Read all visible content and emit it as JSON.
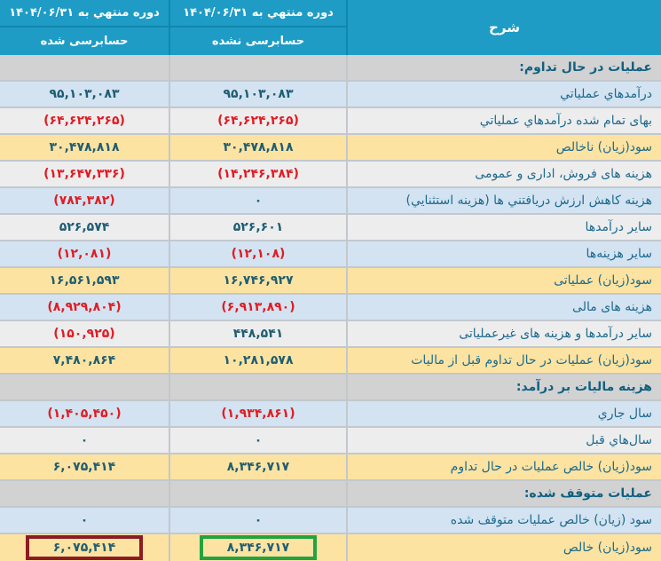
{
  "colors": {
    "header_bg": "#1e9cc6",
    "header_line": "#1187af",
    "grid_line": "#c2c8cd",
    "row_blue": "#d3e3f1",
    "row_gray": "#ededee",
    "row_yellow": "#fce3a1",
    "row_section": "#d2d2d2",
    "label_color": "#1d6a8e",
    "section_label_color": "#106080",
    "num_color": "#1f5d72",
    "negative_color": "#e01c22",
    "highlight_green": "#23a33f",
    "highlight_darkred": "#8d1b22"
  },
  "table": {
    "header": {
      "desc": "شرح",
      "unaudited": {
        "period": "دوره منتهي به ۱۴۰۴/۰۶/۳۱",
        "status": "حسابرسی نشده"
      },
      "audited": {
        "period": "دوره منتهي به ۱۴۰۴/۰۶/۳۱",
        "status": "حسابرسی شده"
      }
    },
    "rows": [
      {
        "type": "section",
        "label": "عملیات در حال تداوم:"
      },
      {
        "type": "data",
        "bg": "blue",
        "label": "درآمدهاي عملياتي",
        "unaudited": {
          "text": "۹۵,۱۰۳,۰۸۳",
          "negative": false,
          "highlight": null
        },
        "audited": {
          "text": "۹۵,۱۰۳,۰۸۳",
          "negative": false,
          "highlight": null
        }
      },
      {
        "type": "data",
        "bg": "gray",
        "label": "بهای تمام شده درآمدهاي عملياتي",
        "unaudited": {
          "text": "(۶۴,۶۲۴,۲۶۵)",
          "negative": true,
          "highlight": null
        },
        "audited": {
          "text": "(۶۴,۶۲۴,۲۶۵)",
          "negative": true,
          "highlight": null
        }
      },
      {
        "type": "data",
        "bg": "yellow",
        "label": "سود(زیان) ناخالص",
        "unaudited": {
          "text": "۳۰,۴۷۸,۸۱۸",
          "negative": false,
          "highlight": null
        },
        "audited": {
          "text": "۳۰,۴۷۸,۸۱۸",
          "negative": false,
          "highlight": null
        }
      },
      {
        "type": "data",
        "bg": "gray",
        "label": "هزینه های فروش، اداری و عمومی",
        "unaudited": {
          "text": "(۱۴,۲۴۶,۳۸۴)",
          "negative": true,
          "highlight": null
        },
        "audited": {
          "text": "(۱۳,۶۴۷,۳۳۶)",
          "negative": true,
          "highlight": null
        }
      },
      {
        "type": "data",
        "bg": "blue",
        "label": "هزینه کاهش ارزش دریافتني ها (هزینه استثنايي)",
        "unaudited": {
          "text": "۰",
          "negative": false,
          "highlight": null
        },
        "audited": {
          "text": "(۷۸۴,۳۸۲)",
          "negative": true,
          "highlight": null
        }
      },
      {
        "type": "data",
        "bg": "gray",
        "label": "سایر درآمدها",
        "unaudited": {
          "text": "۵۲۶,۶۰۱",
          "negative": false,
          "highlight": null
        },
        "audited": {
          "text": "۵۲۶,۵۷۴",
          "negative": false,
          "highlight": null
        }
      },
      {
        "type": "data",
        "bg": "blue",
        "label": "سایر هزینه‌ها",
        "unaudited": {
          "text": "(۱۲,۱۰۸)",
          "negative": true,
          "highlight": null
        },
        "audited": {
          "text": "(۱۲,۰۸۱)",
          "negative": true,
          "highlight": null
        }
      },
      {
        "type": "data",
        "bg": "yellow",
        "label": "سود(زیان) عملیاتی",
        "unaudited": {
          "text": "۱۶,۷۴۶,۹۲۷",
          "negative": false,
          "highlight": null
        },
        "audited": {
          "text": "۱۶,۵۶۱,۵۹۳",
          "negative": false,
          "highlight": null
        }
      },
      {
        "type": "data",
        "bg": "blue",
        "label": "هزینه های مالی",
        "unaudited": {
          "text": "(۶,۹۱۳,۸۹۰)",
          "negative": true,
          "highlight": null
        },
        "audited": {
          "text": "(۸,۹۲۹,۸۰۴)",
          "negative": true,
          "highlight": null
        }
      },
      {
        "type": "data",
        "bg": "gray",
        "label": "سایر درآمدها و هزینه های غیرعملیاتی",
        "unaudited": {
          "text": "۴۴۸,۵۴۱",
          "negative": false,
          "highlight": null
        },
        "audited": {
          "text": "(۱۵۰,۹۲۵)",
          "negative": true,
          "highlight": null
        }
      },
      {
        "type": "data",
        "bg": "yellow",
        "label": "سود(زیان) عملیات در حال تداوم قبل از مالیات",
        "unaudited": {
          "text": "۱۰,۲۸۱,۵۷۸",
          "negative": false,
          "highlight": null
        },
        "audited": {
          "text": "۷,۴۸۰,۸۶۴",
          "negative": false,
          "highlight": null
        }
      },
      {
        "type": "section",
        "label": "هزینه مالیات بر درآمد:"
      },
      {
        "type": "data",
        "bg": "blue",
        "label": "سال جاري",
        "unaudited": {
          "text": "(۱,۹۳۴,۸۶۱)",
          "negative": true,
          "highlight": null
        },
        "audited": {
          "text": "(۱,۴۰۵,۴۵۰)",
          "negative": true,
          "highlight": null
        }
      },
      {
        "type": "data",
        "bg": "gray",
        "label": "سال‌هاي قبل",
        "unaudited": {
          "text": "۰",
          "negative": false,
          "highlight": null
        },
        "audited": {
          "text": "۰",
          "negative": false,
          "highlight": null
        }
      },
      {
        "type": "data",
        "bg": "yellow",
        "label": "سود(زیان) خالص عملیات در حال تداوم",
        "unaudited": {
          "text": "۸,۳۴۶,۷۱۷",
          "negative": false,
          "highlight": null
        },
        "audited": {
          "text": "۶,۰۷۵,۴۱۴",
          "negative": false,
          "highlight": null
        }
      },
      {
        "type": "section",
        "label": "عملیات متوقف شده:"
      },
      {
        "type": "data",
        "bg": "blue",
        "label": "سود (زیان) خالص عملیات متوقف شده",
        "unaudited": {
          "text": "۰",
          "negative": false,
          "highlight": null
        },
        "audited": {
          "text": "۰",
          "negative": false,
          "highlight": null
        }
      },
      {
        "type": "data",
        "bg": "yellow",
        "label": "سود(زیان) خالص",
        "unaudited": {
          "text": "۸,۳۴۶,۷۱۷",
          "negative": false,
          "highlight": "green"
        },
        "audited": {
          "text": "۶,۰۷۵,۴۱۴",
          "negative": false,
          "highlight": "darkred"
        }
      }
    ]
  }
}
